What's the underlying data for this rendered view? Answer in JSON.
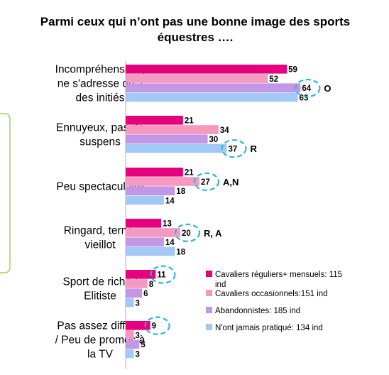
{
  "chart_data": {
    "type": "bar",
    "orientation": "horizontal",
    "title": "Parmi ceux qui n’ont pas une bonne image des sports équestres ….",
    "categories": [
      [
        "Incompréhensible,",
        "ne s'adresse qu'à",
        "des initiés"
      ],
      [
        "Ennuyeux, pas de",
        "suspens"
      ],
      [
        "Peu spectaculaire"
      ],
      [
        "Ringard, terne,",
        "vieillot"
      ],
      [
        "Sport de riche /",
        "Elitiste"
      ],
      [
        "Pas assez diffusé",
        "/ Peu de promos à",
        "la TV"
      ]
    ],
    "series": [
      {
        "name": "Cavaliers réguliers+ mensuels: 115 ind",
        "values": [
          59,
          21,
          21,
          13,
          11,
          9
        ],
        "color": "#e6007e"
      },
      {
        "name": "Cavaliers occasionnels:151 ind",
        "values": [
          52,
          34,
          27,
          20,
          8,
          3
        ],
        "color": "#f49ac1"
      },
      {
        "name": "Abandonnistes: 185 ind",
        "values": [
          64,
          30,
          18,
          14,
          6,
          5
        ],
        "color": "#c497e6"
      },
      {
        "name": "N'ont jamais pratiqué: 134 ind",
        "values": [
          63,
          37,
          14,
          18,
          3,
          3
        ],
        "color": "#a3c8f5"
      }
    ],
    "highlights": [
      {
        "category": 0,
        "series": 2,
        "note": "O"
      },
      {
        "category": 1,
        "series": 3,
        "note": "R"
      },
      {
        "category": 2,
        "series": 1,
        "note": "A,N"
      },
      {
        "category": 3,
        "series": 1,
        "note": "R, A"
      },
      {
        "category": 4,
        "series": 0,
        "note": ""
      },
      {
        "category": 5,
        "series": 0,
        "note": ""
      }
    ],
    "xlim": [
      0,
      100
    ],
    "grid": false,
    "legend_position": "bottom-right",
    "highlight_color": "#29b6e0",
    "bracket_color": "#8cc63f"
  }
}
